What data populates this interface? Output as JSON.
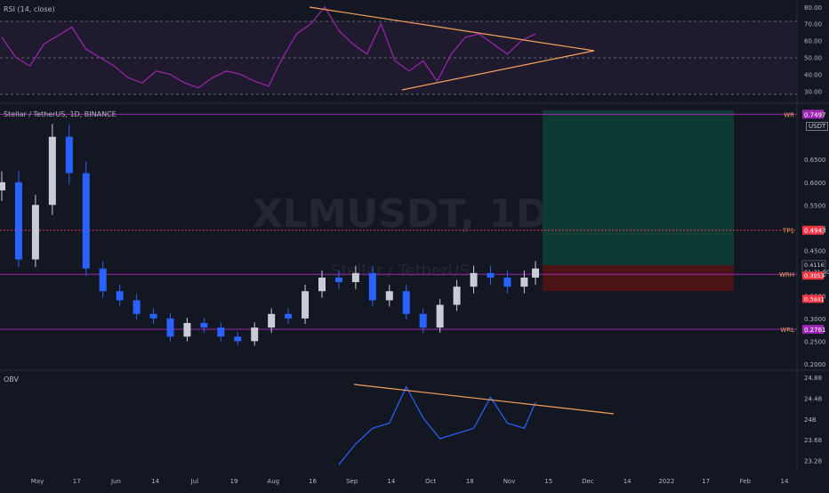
{
  "rsi_pane": {
    "label": "RSI (14, close)",
    "axis_ticks": [
      "80.00",
      "70.00",
      "60.00",
      "50.00",
      "40.00",
      "30.00"
    ]
  },
  "price_pane": {
    "symbol_label": "Stellar / TetherUS, 1D, BINANCE",
    "watermark_main": "XLMUSDT, 1D",
    "watermark_sub": "Stellar / TetherUS",
    "currency_badge": "USDT",
    "axis_ticks": [
      "0.6500",
      "0.6000",
      "0.5500",
      "0.5000",
      "0.4500",
      "0.4000",
      "0.3500",
      "0.3000",
      "0.2500",
      "0.2000"
    ],
    "levels": [
      {
        "name": "WR",
        "value": "0.7497",
        "color": "#9c27b0"
      },
      {
        "name": "TP1",
        "value": "0.4943",
        "color": "#f23645"
      },
      {
        "name": "WRH",
        "value": "0.3973",
        "color": "#9c27b0"
      },
      {
        "name": "WRL",
        "value": "0.2761",
        "color": "#9c27b0"
      }
    ],
    "current_price": "0.4116",
    "countdown": "01:31:50",
    "entry_price": "0.3953",
    "stop_price": "0.3441"
  },
  "obv_pane": {
    "label": "OBV",
    "axis_ticks": [
      "24.88",
      "24.48",
      "24B",
      "23.68",
      "23.28"
    ]
  },
  "time_axis": [
    "May",
    "17",
    "Jun",
    "14",
    "Jul",
    "19",
    "Aug",
    "16",
    "Sep",
    "14",
    "Oct",
    "18",
    "Nov",
    "15",
    "Dec",
    "14",
    "2022",
    "17",
    "Feb",
    "14"
  ],
  "colors": {
    "up": "#c8ccd6",
    "down": "#2962ff",
    "rsi_line": "#9c27b0",
    "trendline": "#f5a15c",
    "obv_line": "#2962ff",
    "target_zone": "#0d3b34",
    "stop_zone": "#4a1416"
  },
  "chart_data": [
    {
      "type": "line",
      "title": "RSI (14, close)",
      "ylim": [
        25,
        82
      ],
      "x_index": [
        0,
        5,
        10,
        15,
        20,
        25,
        30,
        35,
        40,
        45,
        50,
        55,
        60,
        65,
        70,
        75,
        80,
        85,
        90,
        95,
        100,
        105,
        110,
        115,
        120,
        125,
        130,
        135,
        140,
        145,
        150,
        155,
        160,
        165,
        170,
        175,
        180,
        185,
        190
      ],
      "values": [
        62,
        50,
        45,
        58,
        63,
        68,
        55,
        50,
        45,
        38,
        35,
        42,
        40,
        35,
        32,
        38,
        42,
        40,
        36,
        33,
        50,
        64,
        70,
        80,
        66,
        58,
        52,
        70,
        48,
        42,
        48,
        36,
        52,
        62,
        64,
        58,
        52,
        60,
        64
      ]
    },
    {
      "type": "candlestick",
      "title": "Stellar / TetherUS, 1D, BINANCE",
      "ylim": [
        0.19,
        0.77
      ],
      "x_index": [
        0,
        6,
        12,
        18,
        24,
        30,
        36,
        42,
        48,
        54,
        60,
        66,
        72,
        78,
        84,
        90,
        96,
        102,
        108,
        114,
        120,
        126,
        132,
        138,
        144,
        150,
        156,
        162,
        168,
        174,
        180,
        186,
        190
      ],
      "close": [
        0.6,
        0.43,
        0.55,
        0.7,
        0.62,
        0.41,
        0.36,
        0.34,
        0.31,
        0.3,
        0.26,
        0.29,
        0.28,
        0.26,
        0.25,
        0.28,
        0.31,
        0.3,
        0.36,
        0.39,
        0.38,
        0.4,
        0.34,
        0.36,
        0.31,
        0.28,
        0.33,
        0.37,
        0.4,
        0.39,
        0.37,
        0.39,
        0.41
      ],
      "levels": {
        "WR": 0.7497,
        "TP1": 0.4943,
        "WRH": 0.3973,
        "WRL": 0.2761
      },
      "last_price": 0.4116,
      "entry": 0.3953,
      "stop": 0.3441
    },
    {
      "type": "line",
      "title": "OBV",
      "ylim": [
        23.1,
        24.95
      ],
      "x_index": [
        120,
        126,
        132,
        138,
        144,
        150,
        156,
        162,
        168,
        174,
        180,
        186,
        190
      ],
      "values": [
        23.2,
        23.6,
        23.9,
        24.0,
        24.7,
        24.1,
        23.7,
        23.8,
        23.9,
        24.5,
        24.0,
        23.9,
        24.4
      ]
    }
  ]
}
